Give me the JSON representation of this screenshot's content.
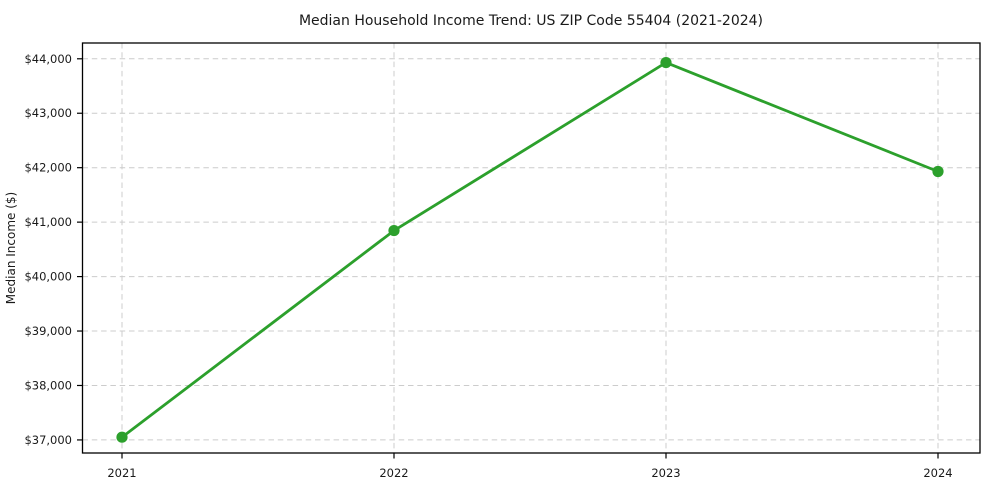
{
  "figure": {
    "background": "#ffffff"
  },
  "chart_data": {
    "type": "line",
    "title": "Median Household Income Trend: US ZIP Code 55404 (2021-2024)",
    "ylabel": "Median Income ($)",
    "xlabel": "",
    "categories": [
      "2021",
      "2022",
      "2023",
      "2024"
    ],
    "values": [
      37050,
      40845,
      43930,
      41930
    ],
    "yticks": [
      37000,
      38000,
      39000,
      40000,
      41000,
      42000,
      43000,
      44000
    ],
    "ytick_labels": [
      "$37,000",
      "$38,000",
      "$39,000",
      "$40,000",
      "$41,000",
      "$42,000",
      "$43,000",
      "$44,000"
    ],
    "ylim": [
      36760,
      44290
    ],
    "grid": true,
    "grid_style": "dashed",
    "legend": "none",
    "marker": "circle",
    "colors": {
      "line": "#2ca02c",
      "marker": "#2ca02c",
      "grid": "#cccccc",
      "axis": "#000000",
      "text": "#1a1a1a",
      "background": "#ffffff"
    }
  }
}
